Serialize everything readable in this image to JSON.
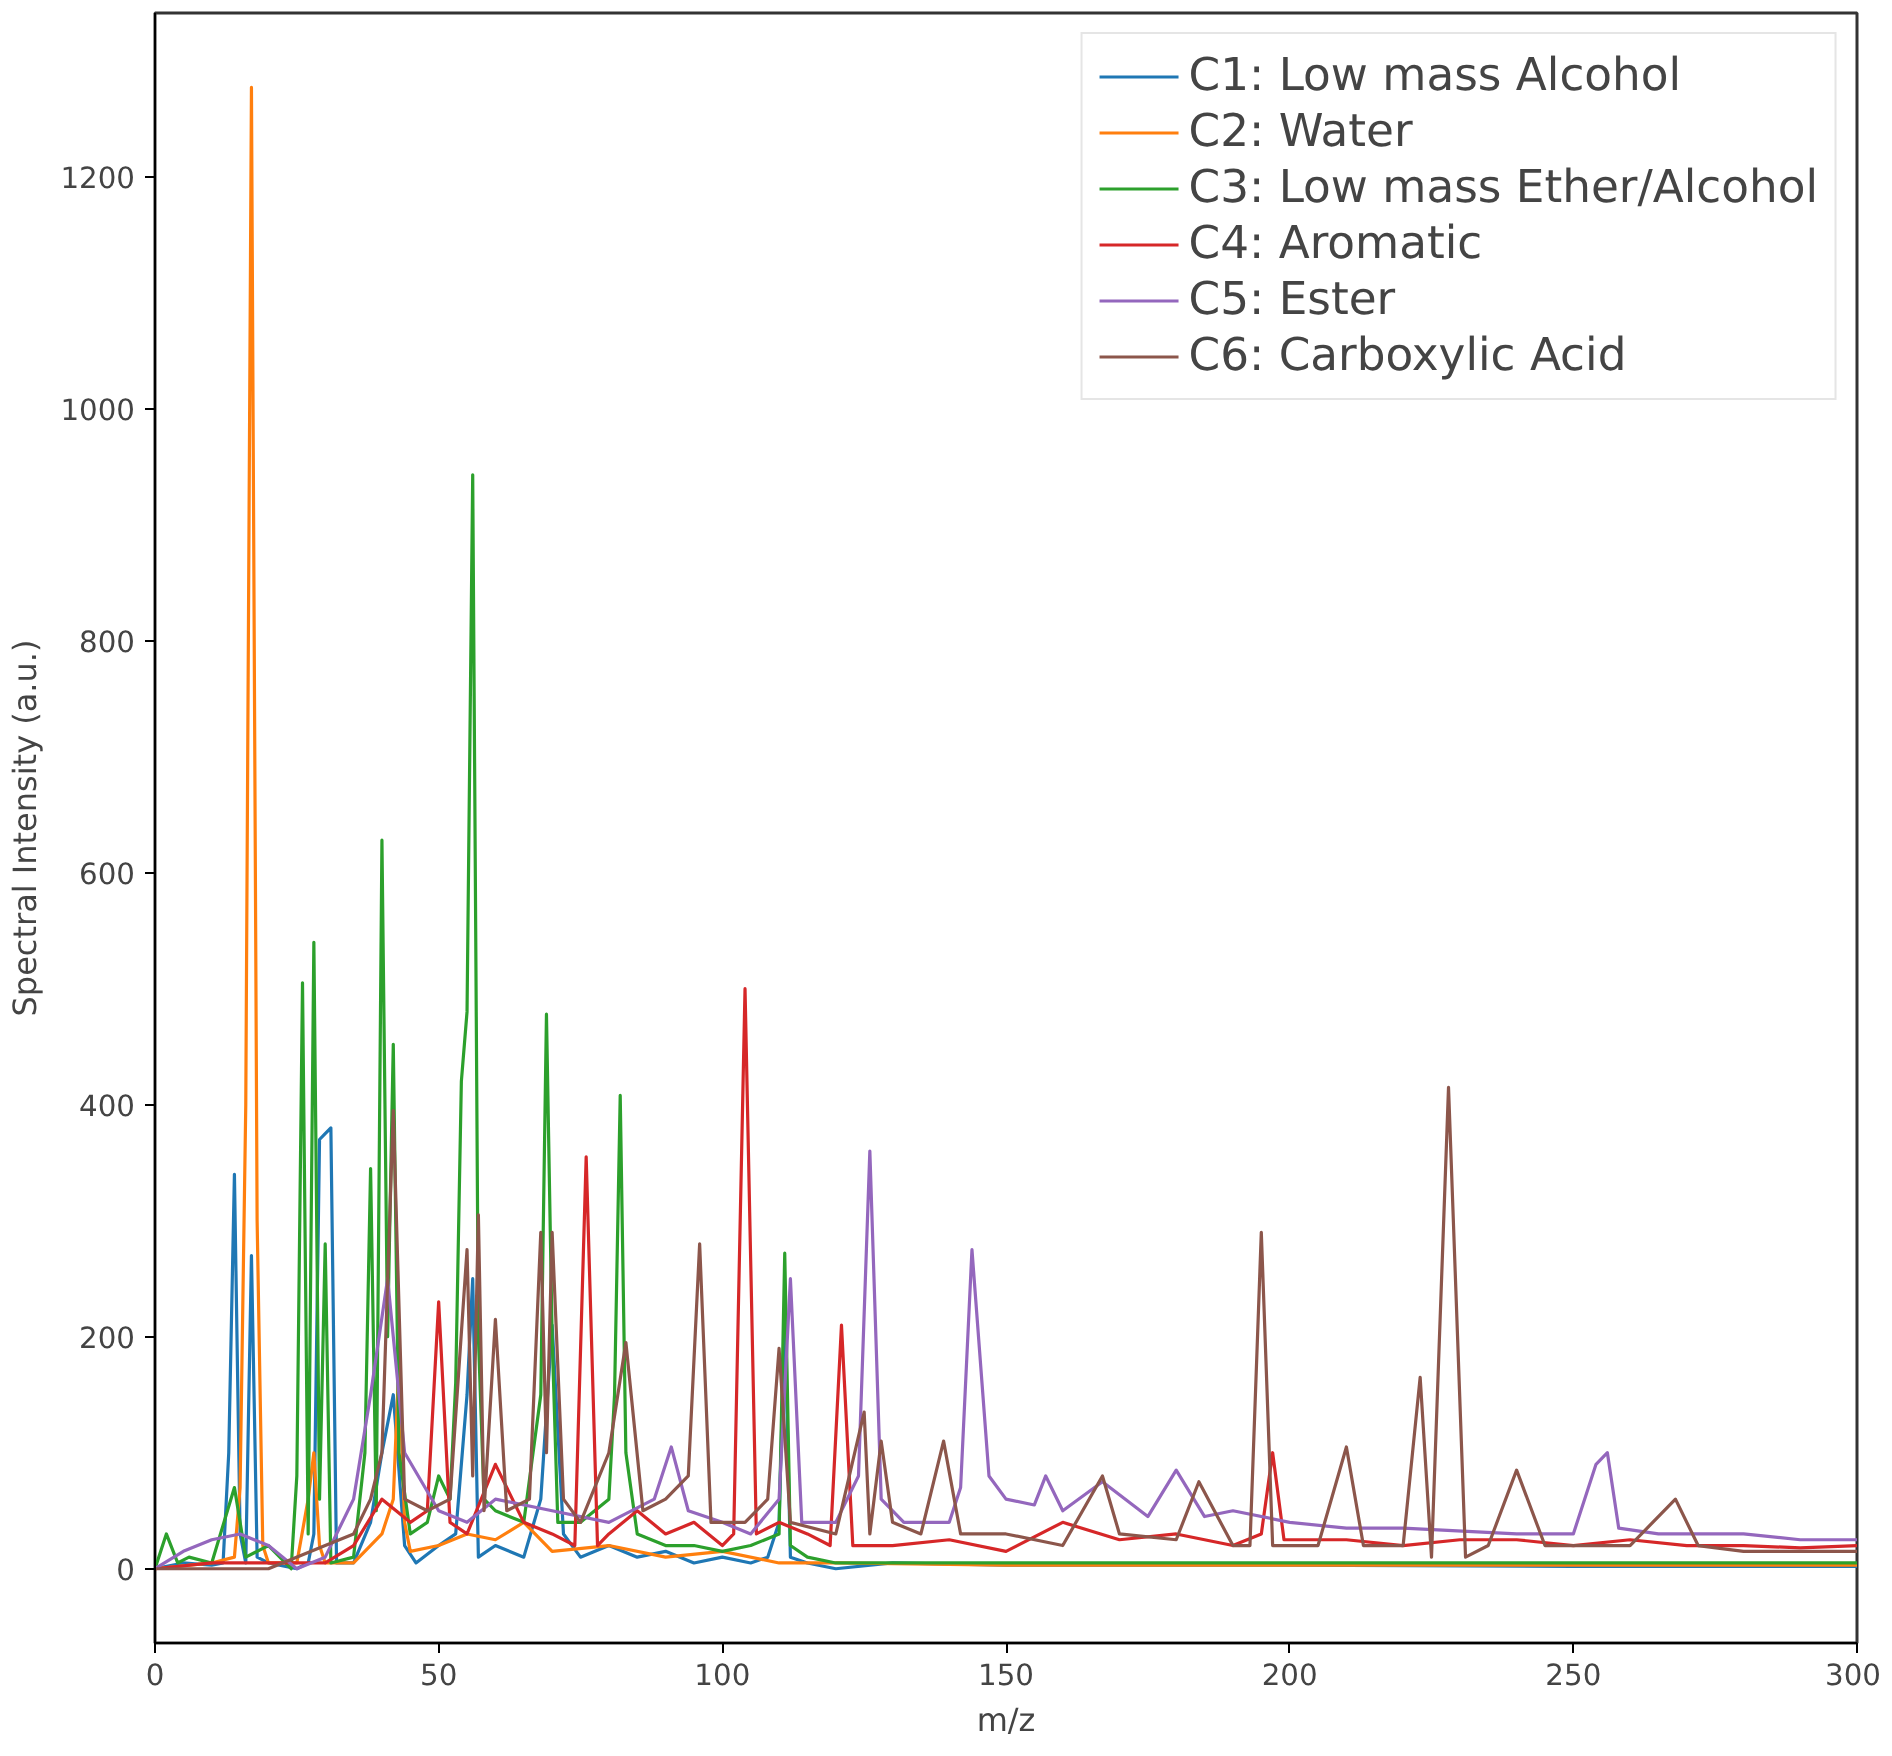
{
  "chart_data": {
    "type": "line",
    "xlabel": "m/z",
    "ylabel": "Spectral Intensity (a.u.)",
    "xlim": [
      0,
      300
    ],
    "ylim": [
      -64,
      1341
    ],
    "xticks": [
      0,
      50,
      100,
      150,
      200,
      250,
      300
    ],
    "yticks": [
      0,
      200,
      400,
      600,
      800,
      1000,
      1200
    ],
    "grid": false,
    "legend": "top right",
    "line_style": "solid",
    "marker": "none",
    "series": [
      {
        "name": "C1: Low mass Alcohol",
        "color": "#1f77b4",
        "x": [
          0,
          5,
          10,
          12,
          13,
          14,
          15,
          16,
          17,
          18,
          20,
          25,
          27,
          28,
          29,
          30,
          31,
          32,
          35,
          38,
          40,
          42,
          44,
          46,
          50,
          53,
          55,
          56,
          57,
          60,
          65,
          68,
          70,
          72,
          75,
          80,
          85,
          90,
          95,
          100,
          105,
          108,
          110,
          111,
          112,
          115,
          120,
          130,
          150,
          200,
          250,
          300
        ],
        "values": [
          0,
          5,
          3,
          5,
          100,
          340,
          30,
          5,
          270,
          10,
          5,
          0,
          5,
          30,
          370,
          375,
          380,
          5,
          5,
          40,
          100,
          150,
          20,
          5,
          20,
          30,
          150,
          250,
          10,
          20,
          10,
          60,
          210,
          30,
          10,
          20,
          10,
          15,
          5,
          10,
          5,
          10,
          40,
          220,
          10,
          5,
          0,
          5,
          3,
          3,
          2,
          2
        ]
      },
      {
        "name": "C2: Water",
        "color": "#ff7f0e",
        "x": [
          0,
          10,
          14,
          15,
          16,
          17,
          18,
          19,
          20,
          25,
          27,
          28,
          29,
          30,
          35,
          40,
          42,
          43,
          44,
          45,
          50,
          55,
          60,
          65,
          70,
          80,
          90,
          100,
          110,
          120,
          150,
          200,
          250,
          300
        ],
        "values": [
          0,
          5,
          10,
          70,
          400,
          1277,
          300,
          20,
          5,
          5,
          60,
          100,
          20,
          5,
          5,
          30,
          60,
          178,
          40,
          15,
          20,
          30,
          25,
          40,
          15,
          20,
          10,
          15,
          5,
          5,
          3,
          3,
          3,
          3
        ]
      },
      {
        "name": "C3: Low mass Ether/Alcohol",
        "color": "#2ca02c",
        "x": [
          0,
          2,
          4,
          6,
          10,
          14,
          16,
          20,
          24,
          25,
          26,
          27,
          28,
          29,
          30,
          31,
          35,
          37,
          38,
          39,
          40,
          41,
          42,
          43,
          45,
          48,
          50,
          52,
          53,
          54,
          55,
          56,
          57,
          58,
          60,
          65,
          68,
          69,
          70,
          71,
          75,
          80,
          81,
          82,
          83,
          85,
          90,
          95,
          100,
          105,
          110,
          111,
          112,
          115,
          120,
          150,
          200,
          250,
          300
        ],
        "values": [
          0,
          30,
          5,
          10,
          5,
          70,
          10,
          20,
          0,
          80,
          505,
          30,
          540,
          60,
          280,
          5,
          10,
          100,
          345,
          50,
          628,
          200,
          452,
          100,
          30,
          40,
          80,
          60,
          160,
          420,
          480,
          943,
          200,
          60,
          50,
          40,
          150,
          478,
          200,
          40,
          40,
          60,
          150,
          408,
          100,
          30,
          20,
          20,
          15,
          20,
          30,
          272,
          20,
          10,
          5,
          5,
          5,
          5,
          5
        ]
      },
      {
        "name": "C4: Aromatic",
        "color": "#d62728",
        "x": [
          0,
          10,
          20,
          30,
          35,
          40,
          45,
          48,
          50,
          52,
          55,
          60,
          65,
          70,
          74,
          76,
          78,
          80,
          85,
          90,
          95,
          100,
          102,
          104,
          106,
          110,
          115,
          119,
          121,
          123,
          130,
          140,
          150,
          160,
          170,
          180,
          190,
          195,
          197,
          199,
          210,
          220,
          230,
          240,
          250,
          260,
          270,
          280,
          290,
          300
        ],
        "values": [
          0,
          5,
          5,
          5,
          20,
          60,
          40,
          50,
          230,
          40,
          30,
          90,
          40,
          30,
          20,
          355,
          20,
          30,
          50,
          30,
          40,
          20,
          30,
          500,
          30,
          40,
          30,
          20,
          210,
          20,
          20,
          25,
          15,
          40,
          25,
          30,
          20,
          30,
          100,
          25,
          25,
          20,
          25,
          25,
          20,
          25,
          20,
          20,
          18,
          20
        ]
      },
      {
        "name": "C5: Ester",
        "color": "#9467bd",
        "x": [
          0,
          5,
          10,
          15,
          20,
          25,
          30,
          35,
          38,
          41,
          44,
          50,
          55,
          60,
          70,
          80,
          88,
          91,
          94,
          100,
          105,
          110,
          112,
          114,
          120,
          124,
          126,
          128,
          132,
          140,
          142,
          144,
          147,
          150,
          155,
          157,
          160,
          167,
          175,
          180,
          185,
          190,
          200,
          210,
          220,
          240,
          250,
          254,
          256,
          258,
          265,
          280,
          290,
          300
        ],
        "values": [
          0,
          15,
          25,
          30,
          20,
          0,
          10,
          60,
          150,
          250,
          100,
          50,
          40,
          60,
          50,
          40,
          60,
          105,
          50,
          40,
          30,
          60,
          250,
          40,
          40,
          80,
          360,
          60,
          40,
          40,
          70,
          275,
          80,
          60,
          55,
          80,
          50,
          75,
          45,
          85,
          45,
          50,
          40,
          35,
          35,
          30,
          30,
          90,
          100,
          35,
          30,
          30,
          25,
          25
        ]
      },
      {
        "name": "C6: Carboxylic Acid",
        "color": "#8c564b",
        "x": [
          0,
          20,
          30,
          35,
          38,
          40,
          42,
          44,
          48,
          52,
          55,
          56,
          57,
          58,
          60,
          62,
          66,
          68,
          69,
          70,
          72,
          75,
          80,
          83,
          86,
          90,
          94,
          96,
          98,
          104,
          108,
          110,
          112,
          120,
          125,
          126,
          128,
          130,
          135,
          139,
          142,
          150,
          160,
          167,
          170,
          180,
          184,
          190,
          193,
          195,
          197,
          205,
          210,
          213,
          220,
          223,
          225,
          228,
          231,
          235,
          240,
          245,
          260,
          268,
          272,
          280,
          300
        ],
        "values": [
          0,
          0,
          20,
          30,
          60,
          100,
          395,
          60,
          50,
          60,
          275,
          80,
          305,
          50,
          215,
          50,
          60,
          290,
          100,
          290,
          60,
          40,
          100,
          195,
          50,
          60,
          80,
          280,
          40,
          40,
          60,
          190,
          40,
          30,
          135,
          30,
          110,
          40,
          30,
          110,
          30,
          30,
          20,
          80,
          30,
          25,
          75,
          20,
          20,
          290,
          20,
          20,
          105,
          20,
          20,
          165,
          10,
          415,
          10,
          20,
          85,
          20,
          20,
          60,
          20,
          15,
          15
        ]
      }
    ]
  }
}
